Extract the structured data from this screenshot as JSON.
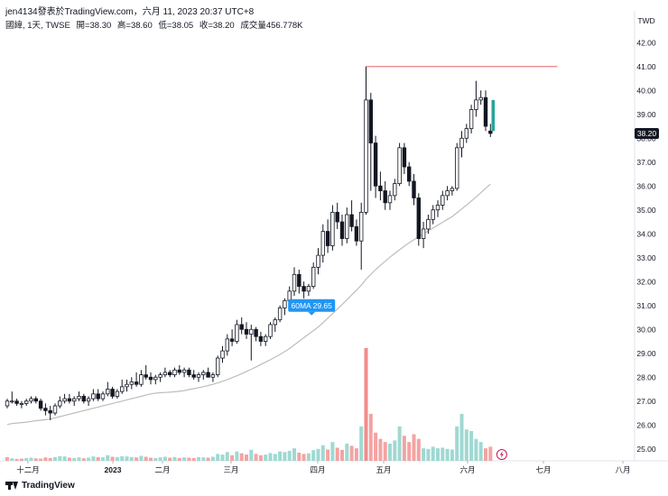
{
  "header": {
    "text": "jen4134發表於TradingView.com，六月 11, 2023 20:37 UTC+8"
  },
  "legend": {
    "symbol": "國緯, 1天, TWSE",
    "open_label": "開=38.30",
    "high_label": "高=38.60",
    "low_label": "低=38.05",
    "close_label": "收=38.20",
    "volume_label": "成交量456.778K"
  },
  "currency": "TWD",
  "last_price": "38.20",
  "ma_label": "60MA 29.65",
  "footer": {
    "brand": "TradingView"
  },
  "colors": {
    "up": "#26a69a",
    "down": "#131722",
    "vol_up": "#9fd9d2",
    "vol_down": "#f4a3a3",
    "vol_spike": "#f28b8b",
    "ma": "#bdbdbd",
    "resistance": "#f08080",
    "ma_badge": "#2196f3"
  },
  "chart_data": {
    "type": "candlestick",
    "y_axis_ticks": [
      "25.00",
      "26.00",
      "27.00",
      "28.00",
      "29.00",
      "30.00",
      "31.00",
      "32.00",
      "33.00",
      "34.00",
      "35.00",
      "36.00",
      "37.00",
      "38.00",
      "39.00",
      "40.00",
      "41.00",
      "42.00"
    ],
    "ylim": [
      24.5,
      42.5
    ],
    "x_axis_ticks": [
      "十二月",
      "2023",
      "二月",
      "三月",
      "四月",
      "五月",
      "六月",
      "七月",
      "八月"
    ],
    "candles": [
      [
        26.8,
        27.1,
        26.7,
        27.0
      ],
      [
        27.0,
        27.4,
        26.9,
        27.0
      ],
      [
        27.0,
        27.1,
        26.8,
        26.9
      ],
      [
        26.9,
        27.0,
        26.7,
        26.9
      ],
      [
        26.9,
        27.1,
        26.8,
        27.0
      ],
      [
        27.0,
        27.2,
        26.9,
        27.1
      ],
      [
        27.1,
        27.2,
        26.9,
        27.0
      ],
      [
        27.0,
        27.1,
        26.6,
        26.7
      ],
      [
        26.7,
        26.9,
        26.4,
        26.6
      ],
      [
        26.6,
        26.8,
        26.2,
        26.5
      ],
      [
        26.5,
        26.9,
        26.4,
        26.8
      ],
      [
        26.8,
        27.2,
        26.7,
        27.0
      ],
      [
        27.0,
        27.3,
        26.9,
        27.1
      ],
      [
        27.1,
        27.3,
        26.9,
        27.0
      ],
      [
        27.0,
        27.2,
        26.8,
        27.1
      ],
      [
        27.1,
        27.4,
        27.0,
        27.2
      ],
      [
        27.2,
        27.3,
        26.9,
        27.0
      ],
      [
        27.0,
        27.2,
        26.8,
        27.1
      ],
      [
        27.1,
        27.5,
        27.0,
        27.3
      ],
      [
        27.3,
        27.5,
        27.0,
        27.1
      ],
      [
        27.1,
        27.4,
        27.0,
        27.3
      ],
      [
        27.3,
        27.8,
        27.2,
        27.5
      ],
      [
        27.5,
        27.6,
        27.1,
        27.2
      ],
      [
        27.2,
        27.5,
        27.1,
        27.4
      ],
      [
        27.4,
        27.9,
        27.3,
        27.6
      ],
      [
        27.6,
        27.9,
        27.4,
        27.7
      ],
      [
        27.7,
        28.0,
        27.5,
        27.8
      ],
      [
        27.8,
        28.2,
        27.6,
        27.7
      ],
      [
        27.7,
        28.3,
        27.6,
        28.1
      ],
      [
        28.1,
        28.5,
        27.9,
        28.0
      ],
      [
        28.0,
        28.2,
        27.7,
        27.9
      ],
      [
        27.9,
        28.1,
        27.7,
        28.0
      ],
      [
        28.0,
        28.2,
        27.8,
        28.1
      ],
      [
        28.1,
        28.4,
        28.0,
        28.2
      ],
      [
        28.2,
        28.3,
        28.0,
        28.1
      ],
      [
        28.1,
        28.4,
        28.0,
        28.3
      ],
      [
        28.3,
        28.5,
        28.1,
        28.2
      ],
      [
        28.2,
        28.4,
        28.0,
        28.3
      ],
      [
        28.3,
        28.4,
        28.0,
        28.1
      ],
      [
        28.1,
        28.3,
        27.9,
        28.0
      ],
      [
        28.0,
        28.2,
        27.8,
        28.1
      ],
      [
        28.1,
        28.3,
        27.9,
        28.2
      ],
      [
        28.2,
        28.4,
        28.0,
        28.0
      ],
      [
        28.0,
        28.2,
        27.8,
        28.1
      ],
      [
        28.1,
        28.9,
        28.0,
        28.8
      ],
      [
        28.8,
        29.3,
        28.6,
        29.1
      ],
      [
        29.1,
        29.8,
        28.9,
        29.6
      ],
      [
        29.6,
        30.0,
        29.3,
        29.5
      ],
      [
        29.5,
        30.4,
        29.4,
        30.2
      ],
      [
        30.2,
        30.5,
        29.8,
        30.0
      ],
      [
        30.0,
        30.3,
        29.6,
        29.8
      ],
      [
        29.8,
        30.2,
        28.7,
        30.0
      ],
      [
        30.0,
        30.1,
        29.5,
        29.7
      ],
      [
        29.7,
        29.9,
        29.3,
        29.5
      ],
      [
        29.5,
        29.8,
        29.3,
        29.7
      ],
      [
        29.7,
        30.3,
        29.6,
        30.2
      ],
      [
        30.2,
        30.5,
        29.9,
        30.4
      ],
      [
        30.4,
        31.0,
        30.3,
        30.9
      ],
      [
        30.9,
        31.3,
        30.6,
        31.2
      ],
      [
        31.2,
        31.8,
        31.0,
        31.6
      ],
      [
        31.6,
        32.6,
        31.4,
        32.3
      ],
      [
        32.3,
        32.5,
        31.5,
        31.8
      ],
      [
        31.8,
        32.0,
        31.3,
        31.6
      ],
      [
        31.6,
        31.9,
        31.4,
        31.8
      ],
      [
        31.8,
        32.8,
        31.7,
        32.6
      ],
      [
        32.6,
        33.4,
        32.3,
        33.1
      ],
      [
        33.1,
        34.4,
        32.8,
        34.1
      ],
      [
        34.1,
        34.6,
        33.2,
        33.5
      ],
      [
        33.5,
        35.2,
        33.3,
        34.9
      ],
      [
        34.9,
        35.3,
        34.2,
        34.5
      ],
      [
        34.5,
        34.8,
        33.5,
        33.8
      ],
      [
        33.8,
        35.1,
        33.6,
        34.8
      ],
      [
        34.8,
        35.4,
        34.1,
        34.3
      ],
      [
        34.3,
        34.6,
        33.5,
        33.7
      ],
      [
        33.7,
        35.3,
        32.5,
        34.9
      ],
      [
        34.9,
        41.0,
        34.8,
        39.6
      ],
      [
        39.6,
        39.9,
        35.8,
        37.8
      ],
      [
        37.8,
        38.1,
        35.5,
        36.0
      ],
      [
        36.0,
        36.6,
        35.4,
        35.8
      ],
      [
        35.8,
        36.2,
        35.0,
        35.3
      ],
      [
        35.3,
        35.8,
        35.0,
        35.6
      ],
      [
        35.6,
        36.3,
        35.4,
        36.1
      ],
      [
        36.1,
        37.8,
        36.0,
        37.6
      ],
      [
        37.6,
        37.8,
        36.5,
        36.8
      ],
      [
        36.8,
        37.0,
        36.0,
        36.2
      ],
      [
        36.2,
        36.5,
        35.2,
        35.5
      ],
      [
        35.5,
        35.7,
        33.5,
        33.8
      ],
      [
        33.8,
        34.5,
        33.4,
        34.2
      ],
      [
        34.2,
        34.8,
        34.0,
        34.6
      ],
      [
        34.6,
        35.2,
        34.4,
        35.0
      ],
      [
        35.0,
        35.4,
        34.7,
        35.2
      ],
      [
        35.2,
        35.8,
        35.0,
        35.6
      ],
      [
        35.6,
        36.0,
        35.4,
        35.8
      ],
      [
        35.8,
        36.0,
        35.6,
        35.9
      ],
      [
        35.9,
        37.8,
        35.8,
        37.6
      ],
      [
        37.6,
        38.3,
        37.2,
        38.0
      ],
      [
        38.0,
        38.6,
        37.8,
        38.4
      ],
      [
        38.4,
        39.4,
        38.2,
        39.2
      ],
      [
        39.2,
        40.4,
        38.9,
        39.6
      ],
      [
        39.6,
        40.0,
        39.4,
        39.7
      ],
      [
        39.7,
        40.0,
        38.3,
        38.5
      ],
      [
        38.3,
        38.6,
        38.05,
        38.2
      ]
    ],
    "volume_up": [
      false,
      true,
      false,
      false,
      true,
      true,
      false,
      false,
      false,
      false,
      true,
      true,
      true,
      false,
      true,
      true,
      false,
      true,
      true,
      false,
      true,
      true,
      false,
      true,
      true,
      true,
      true,
      false,
      true,
      false,
      false,
      true,
      true,
      true,
      false,
      true,
      false,
      true,
      false,
      false,
      true,
      true,
      false,
      true,
      true,
      true,
      true,
      false,
      true,
      false,
      false,
      true,
      false,
      false,
      true,
      true,
      true,
      true,
      true,
      true,
      true,
      false,
      false,
      true,
      true,
      true,
      true,
      false,
      true,
      false,
      false,
      true,
      false,
      false,
      true,
      true,
      false,
      false,
      false,
      false,
      true,
      true,
      true,
      false,
      false,
      false,
      false,
      true,
      true,
      true,
      true,
      true,
      true,
      true,
      true,
      true,
      true,
      true,
      true,
      true,
      false,
      false
    ],
    "volume": [
      12,
      8,
      6,
      7,
      9,
      10,
      8,
      7,
      11,
      9,
      12,
      15,
      14,
      10,
      9,
      11,
      8,
      10,
      14,
      12,
      11,
      18,
      13,
      12,
      15,
      14,
      12,
      11,
      16,
      13,
      10,
      9,
      11,
      13,
      10,
      12,
      9,
      11,
      10,
      9,
      12,
      11,
      10,
      13,
      22,
      20,
      28,
      18,
      30,
      24,
      20,
      35,
      22,
      18,
      20,
      25,
      22,
      30,
      28,
      32,
      40,
      26,
      22,
      24,
      34,
      38,
      50,
      36,
      60,
      42,
      35,
      55,
      48,
      40,
      110,
      360,
      150,
      90,
      70,
      60,
      55,
      65,
      110,
      80,
      60,
      85,
      70,
      40,
      38,
      45,
      40,
      42,
      38,
      36,
      110,
      150,
      100,
      95,
      70,
      60,
      40,
      45
    ],
    "ma60": [
      26.02,
      26.06,
      26.08,
      26.1,
      26.12,
      26.15,
      26.18,
      26.2,
      26.22,
      26.25,
      26.3,
      26.35,
      26.4,
      26.45,
      26.5,
      26.55,
      26.6,
      26.65,
      26.7,
      26.75,
      26.8,
      26.85,
      26.9,
      26.95,
      27.0,
      27.05,
      27.1,
      27.15,
      27.2,
      27.25,
      27.3,
      27.33,
      27.35,
      27.36,
      27.37,
      27.39,
      27.41,
      27.44,
      27.48,
      27.52,
      27.56,
      27.6,
      27.65,
      27.7,
      27.76,
      27.83,
      27.9,
      27.98,
      28.06,
      28.15,
      28.24,
      28.33,
      28.43,
      28.53,
      28.63,
      28.73,
      28.84,
      28.95,
      29.07,
      29.2,
      29.35,
      29.5,
      29.65,
      29.8,
      29.95,
      30.1,
      30.28,
      30.47,
      30.66,
      30.85,
      31.04,
      31.24,
      31.44,
      31.64,
      31.85,
      32.1,
      32.3,
      32.5,
      32.68,
      32.85,
      33.02,
      33.18,
      33.33,
      33.48,
      33.62,
      33.75,
      33.88,
      34.0,
      34.12,
      34.24,
      34.36,
      34.48,
      34.6,
      34.72,
      34.88,
      35.04,
      35.2,
      35.37,
      35.54,
      35.72,
      35.9,
      36.08
    ],
    "resistance_level": 41.0,
    "resistance_start_index": 75,
    "resistance_end_index": 115,
    "ma_label_index": 64
  }
}
